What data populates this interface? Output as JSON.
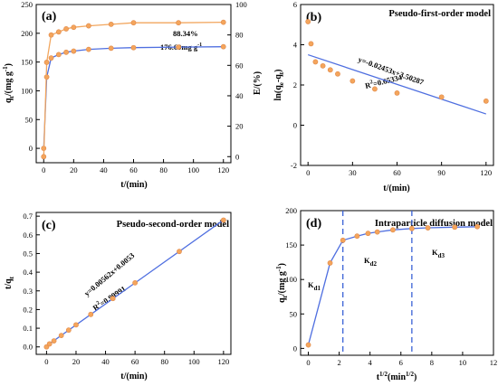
{
  "colors": {
    "point": "#f4a55c",
    "point_edge": "#e0894a",
    "line_blue": "#4f6fe0",
    "line_orange": "#f2a65e",
    "dash": "#3a62d6",
    "frame": "#000000"
  },
  "panels": {
    "a": {
      "label": "(a)",
      "xlabel": "t/(min)",
      "ylabel_left": "q_t/(mg g^-1)",
      "ylabel_right": "E/(%)",
      "annot_e": "88.34%",
      "annot_q": "176.69mg g"
    },
    "b": {
      "label": "(b)",
      "title": "Pseudo-first-order model",
      "xlabel": "t/(min)",
      "ylabel": "ln(q_e-q_t)",
      "eq": "y=-0.02453x+3.50287",
      "r2": "R²=0.65334"
    },
    "c": {
      "label": "(c)",
      "title": "Pseudo-second-order model",
      "xlabel": "t/(min)",
      "ylabel": "t/q_t",
      "eq": "y=0.00562x+0.0053",
      "r2": "R²=0.99991"
    },
    "d": {
      "label": "(d)",
      "title": "Intraparticle diffusion model",
      "xlabel": "t^1/2(min^1/2)",
      "ylabel": "q_t/(mg g^-1)",
      "k1": "K",
      "k1_sub": "d1",
      "k2": "K",
      "k2_sub": "d2",
      "k3": "K",
      "k3_sub": "d3"
    }
  },
  "chart_data": [
    {
      "type": "scatter",
      "panel": "a",
      "xlim": [
        -5,
        125
      ],
      "ylim_left": [
        -25,
        250
      ],
      "ylim_right": [
        -4,
        100
      ],
      "xticks": [
        0,
        20,
        40,
        60,
        80,
        100,
        120
      ],
      "yticks_left": [
        0,
        50,
        100,
        150,
        200,
        250
      ],
      "yticks_right": [
        0,
        20,
        40,
        60,
        80,
        100
      ],
      "series": [
        {
          "axis": "left",
          "color": "blue",
          "x": [
            0,
            2,
            5,
            10,
            15,
            20,
            30,
            45,
            60,
            90,
            120
          ],
          "y": [
            0,
            124,
            157,
            163,
            167,
            169,
            172,
            174,
            175,
            176,
            176.69
          ]
        },
        {
          "axis": "right",
          "color": "orange",
          "x": [
            0,
            2,
            5,
            10,
            15,
            20,
            30,
            45,
            60,
            90,
            120
          ],
          "y": [
            0,
            62,
            80,
            82,
            84,
            85,
            86,
            87,
            88,
            88,
            88.34
          ]
        }
      ]
    },
    {
      "type": "scatter",
      "panel": "b",
      "xlim": [
        -5,
        125
      ],
      "ylim": [
        -2,
        6
      ],
      "xticks": [
        0,
        30,
        60,
        90,
        120
      ],
      "yticks": [
        -2,
        0,
        2,
        4,
        6
      ],
      "x": [
        0,
        2,
        5,
        10,
        15,
        20,
        30,
        45,
        60,
        90,
        120
      ],
      "y": [
        5.15,
        4.05,
        3.15,
        2.95,
        2.75,
        2.55,
        2.2,
        1.8,
        1.6,
        1.4,
        1.2
      ],
      "fit": {
        "slope": -0.02453,
        "intercept": 3.50287,
        "x0": 0,
        "x1": 120
      }
    },
    {
      "type": "scatter",
      "panel": "c",
      "xlim": [
        -7,
        125
      ],
      "ylim": [
        -0.04,
        0.72
      ],
      "xticks": [
        0,
        20,
        40,
        60,
        80,
        100,
        120
      ],
      "yticks": [
        0.0,
        0.1,
        0.2,
        0.3,
        0.4,
        0.5,
        0.6,
        0.7
      ],
      "x": [
        0,
        2,
        5,
        10,
        15,
        20,
        30,
        45,
        60,
        90,
        120
      ],
      "y": [
        0,
        0.016,
        0.032,
        0.061,
        0.09,
        0.118,
        0.174,
        0.259,
        0.343,
        0.511,
        0.679
      ],
      "fit": {
        "slope": 0.00562,
        "intercept": 0.0053,
        "x0": 0,
        "x1": 120
      }
    },
    {
      "type": "scatter",
      "panel": "d",
      "xlim": [
        -0.5,
        12
      ],
      "ylim": [
        -10,
        200
      ],
      "xticks": [
        0,
        2,
        4,
        6,
        8,
        10,
        12
      ],
      "yticks": [
        0,
        50,
        100,
        150,
        200
      ],
      "x": [
        0,
        1.41,
        2.24,
        3.16,
        3.87,
        4.47,
        5.48,
        6.71,
        7.75,
        9.49,
        10.95
      ],
      "y": [
        5,
        124,
        157,
        163,
        167,
        169,
        172,
        174,
        175,
        176,
        176.69
      ],
      "vlines": [
        2.24,
        6.71
      ]
    }
  ]
}
